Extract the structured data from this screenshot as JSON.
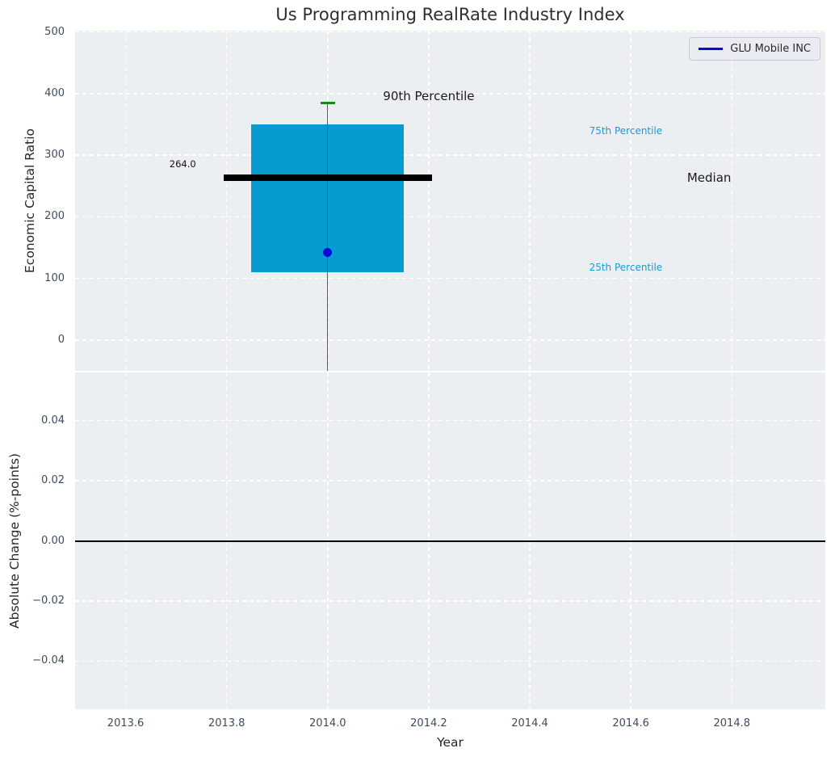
{
  "chart_data": {
    "type": "boxplot",
    "title": "Us Programming RealRate Industry Index",
    "xlabel": "Year",
    "xlim": [
      2013.5,
      2014.985
    ],
    "xticks": {
      "values": [
        2013.6,
        2013.8,
        2014.0,
        2014.2,
        2014.4,
        2014.6,
        2014.8
      ],
      "labels": [
        "2013.6",
        "2013.8",
        "2014.0",
        "2014.2",
        "2014.4",
        "2014.6",
        "2014.8"
      ]
    },
    "top_axes": {
      "ylabel": "Economic Capital Ratio",
      "ylim": [
        -50,
        502
      ],
      "yticks": {
        "values": [
          0,
          100,
          200,
          300,
          400,
          500
        ],
        "labels": [
          "0",
          "100",
          "200",
          "300",
          "400",
          "500"
        ]
      },
      "grid": true
    },
    "bottom_axes": {
      "ylabel": "Absolute Change (%-points)",
      "ylim": [
        -0.056,
        0.056
      ],
      "yticks": {
        "values": [
          0.04,
          0.02,
          0.0,
          -0.02,
          -0.04
        ],
        "labels": [
          "0.04",
          "0.02",
          "0.00",
          "−0.02",
          "−0.04"
        ]
      },
      "zero_line_y": 0.0,
      "grid": true
    },
    "box": {
      "x_center": 2014.0,
      "box_half_width": 0.151,
      "median_half_width": 0.206,
      "cap_half_width": 0.0145,
      "p25": 110,
      "median": 264,
      "p75": 350,
      "p90": 385,
      "whisker_low": -50
    },
    "company_point": {
      "name": "GLU Mobile INC",
      "x": 2014.0,
      "y": 142
    },
    "annotations": [
      {
        "id": "p90-label",
        "text": "90th Percentile",
        "x": 2014.2,
        "y": 396,
        "color": "#1a1a1a",
        "size": 15
      },
      {
        "id": "p75-label",
        "text": "75th Percentile",
        "x": 2014.59,
        "y": 340,
        "color": "#179bd7",
        "size": 12
      },
      {
        "id": "median-label",
        "text": "Median",
        "x": 2014.755,
        "y": 264,
        "color": "#1a1a1a",
        "size": 15
      },
      {
        "id": "p25-label",
        "text": "25th Percentile",
        "x": 2014.59,
        "y": 118,
        "color": "#179bd7",
        "size": 12
      },
      {
        "id": "median-value",
        "text": "264.0",
        "x": 2013.713,
        "y": 286,
        "color": "#111111",
        "size": 11.5
      }
    ],
    "legend": {
      "label": "GLU Mobile INC",
      "line_color": "#0909d9",
      "position": "upper right"
    },
    "colors": {
      "box_fill": "#079bd2",
      "median_line": "#000000",
      "p90_cap": "#1a851a",
      "company_point": "#0a0ad8",
      "whisker": "#5a5a5a",
      "axes_bg": "#eceff1",
      "grid": "#ffffff",
      "tick_label": "#3d4c5f",
      "zero_line": "#000000"
    }
  }
}
